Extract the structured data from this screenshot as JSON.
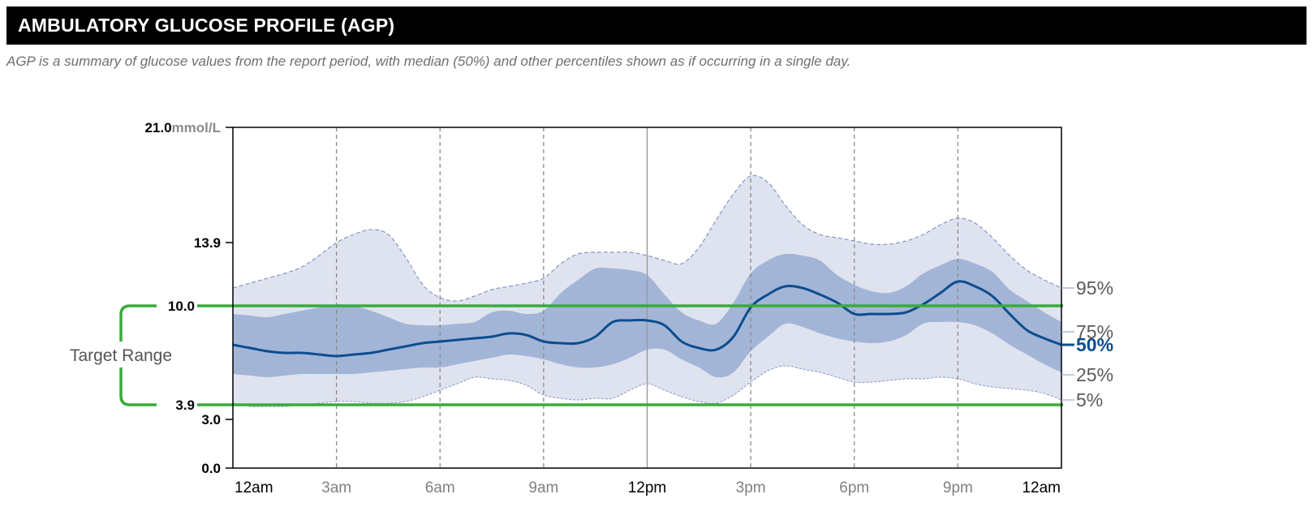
{
  "header": {
    "title": "AMBULATORY GLUCOSE PROFILE (AGP)"
  },
  "subtitle": "AGP is a summary of glucose values from the report period, with median (50%) and other percentiles shown as if occurring in a single day.",
  "colors": {
    "outer_band": "#dfe3ef",
    "inner_band": "#a3b5d7",
    "median": "#0b4d8e",
    "target": "#3aaa3c",
    "p5_p95_line": "#8396c4"
  },
  "chart_data": {
    "type": "area",
    "title": "AMBULATORY GLUCOSE PROFILE (AGP)",
    "y_unit": "mmol/L",
    "ylim": [
      0,
      21
    ],
    "xlim": [
      0,
      24
    ],
    "y_ticks": [
      {
        "value": 21.0,
        "label": "21.0",
        "unit": "mmol/L"
      },
      {
        "value": 13.9,
        "label": "13.9"
      },
      {
        "value": 10.0,
        "label": "10.0"
      },
      {
        "value": 3.9,
        "label": "3.9"
      },
      {
        "value": 3.0,
        "label": "3.0"
      },
      {
        "value": 0.0,
        "label": "0.0"
      }
    ],
    "x_ticks": [
      {
        "hour": 0,
        "label": "12am",
        "emphasis": true
      },
      {
        "hour": 3,
        "label": "3am",
        "emphasis": false
      },
      {
        "hour": 6,
        "label": "6am",
        "emphasis": false
      },
      {
        "hour": 9,
        "label": "9am",
        "emphasis": false
      },
      {
        "hour": 12,
        "label": "12pm",
        "emphasis": true
      },
      {
        "hour": 15,
        "label": "3pm",
        "emphasis": false
      },
      {
        "hour": 18,
        "label": "6pm",
        "emphasis": false
      },
      {
        "hour": 21,
        "label": "9pm",
        "emphasis": false
      },
      {
        "hour": 24,
        "label": "12am",
        "emphasis": true
      }
    ],
    "target_range": {
      "low": 3.9,
      "high": 10.0,
      "label": "Target Range"
    },
    "percentile_labels": [
      {
        "key": "p95",
        "label": "95%"
      },
      {
        "key": "p75",
        "label": "75%"
      },
      {
        "key": "p50",
        "label": "50%"
      },
      {
        "key": "p25",
        "label": "25%"
      },
      {
        "key": "p5",
        "label": "5%"
      }
    ],
    "x": [
      0,
      0.5,
      1,
      1.5,
      2,
      2.5,
      3,
      3.5,
      4,
      4.5,
      5,
      5.5,
      6,
      6.5,
      7,
      7.5,
      8,
      8.5,
      9,
      9.5,
      10,
      10.5,
      11,
      11.5,
      12,
      12.5,
      13,
      13.5,
      14,
      14.5,
      15,
      15.5,
      16,
      16.5,
      17,
      17.5,
      18,
      18.5,
      19,
      19.5,
      20,
      20.5,
      21,
      21.5,
      22,
      22.5,
      23,
      23.5,
      24
    ],
    "series": [
      {
        "name": "95%",
        "key": "p95",
        "values": [
          11.1,
          11.4,
          11.7,
          12.0,
          12.4,
          13.1,
          13.9,
          14.4,
          14.7,
          14.4,
          13.0,
          11.3,
          10.5,
          10.3,
          10.6,
          11.0,
          11.2,
          11.4,
          11.7,
          12.6,
          13.2,
          13.3,
          13.3,
          13.3,
          13.1,
          12.8,
          12.6,
          13.6,
          15.3,
          16.9,
          18.0,
          17.6,
          16.2,
          15.0,
          14.4,
          14.2,
          14.0,
          13.8,
          13.8,
          14.0,
          14.4,
          15.0,
          15.4,
          15.1,
          14.2,
          13.1,
          12.2,
          11.6,
          11.1
        ]
      },
      {
        "name": "75%",
        "key": "p75",
        "values": [
          9.5,
          9.4,
          9.3,
          9.5,
          9.7,
          9.9,
          10.1,
          10.0,
          9.7,
          9.3,
          8.9,
          8.8,
          8.8,
          8.9,
          9.0,
          9.6,
          9.7,
          9.5,
          9.7,
          10.8,
          11.6,
          12.3,
          12.3,
          12.2,
          11.9,
          10.7,
          9.6,
          9.1,
          8.9,
          10.2,
          12.0,
          12.8,
          13.2,
          13.1,
          12.8,
          11.9,
          11.3,
          10.9,
          10.8,
          11.2,
          12.0,
          12.5,
          12.9,
          12.6,
          12.1,
          11.0,
          10.3,
          9.6,
          9.0
        ]
      },
      {
        "name": "50%",
        "key": "p50",
        "values": [
          7.6,
          7.4,
          7.2,
          7.1,
          7.1,
          7.0,
          6.9,
          7.0,
          7.1,
          7.3,
          7.5,
          7.7,
          7.8,
          7.9,
          8.0,
          8.1,
          8.3,
          8.2,
          7.8,
          7.7,
          7.7,
          8.1,
          9.0,
          9.1,
          9.1,
          8.8,
          7.8,
          7.4,
          7.3,
          8.1,
          9.9,
          10.7,
          11.2,
          11.1,
          10.7,
          10.2,
          9.5,
          9.5,
          9.5,
          9.6,
          10.1,
          10.8,
          11.5,
          11.2,
          10.6,
          9.5,
          8.5,
          8.0,
          7.6
        ]
      },
      {
        "name": "25%",
        "key": "p25",
        "values": [
          5.8,
          5.7,
          5.6,
          5.7,
          5.8,
          5.8,
          5.8,
          5.8,
          5.9,
          6.0,
          6.1,
          6.2,
          6.2,
          6.4,
          6.6,
          6.8,
          7.0,
          6.9,
          6.7,
          6.4,
          6.2,
          6.2,
          6.4,
          6.8,
          7.3,
          7.3,
          6.7,
          6.2,
          5.6,
          5.9,
          7.2,
          8.1,
          8.9,
          8.7,
          8.3,
          8.0,
          7.8,
          7.7,
          7.8,
          8.2,
          8.9,
          9.0,
          9.0,
          8.8,
          8.3,
          7.6,
          7.0,
          6.4,
          5.9
        ]
      },
      {
        "name": "5%",
        "key": "p5",
        "values": [
          4.0,
          3.8,
          3.8,
          3.8,
          3.9,
          4.0,
          4.1,
          4.1,
          4.0,
          4.0,
          4.1,
          4.4,
          4.8,
          5.2,
          5.6,
          5.5,
          5.4,
          5.1,
          4.5,
          4.3,
          4.2,
          4.3,
          4.3,
          4.8,
          5.2,
          4.8,
          4.4,
          4.1,
          4.0,
          4.5,
          5.3,
          6.0,
          6.3,
          6.1,
          5.9,
          5.6,
          5.3,
          5.3,
          5.4,
          5.5,
          5.5,
          5.6,
          5.5,
          5.2,
          5.0,
          4.9,
          4.8,
          4.6,
          4.2
        ]
      }
    ]
  }
}
